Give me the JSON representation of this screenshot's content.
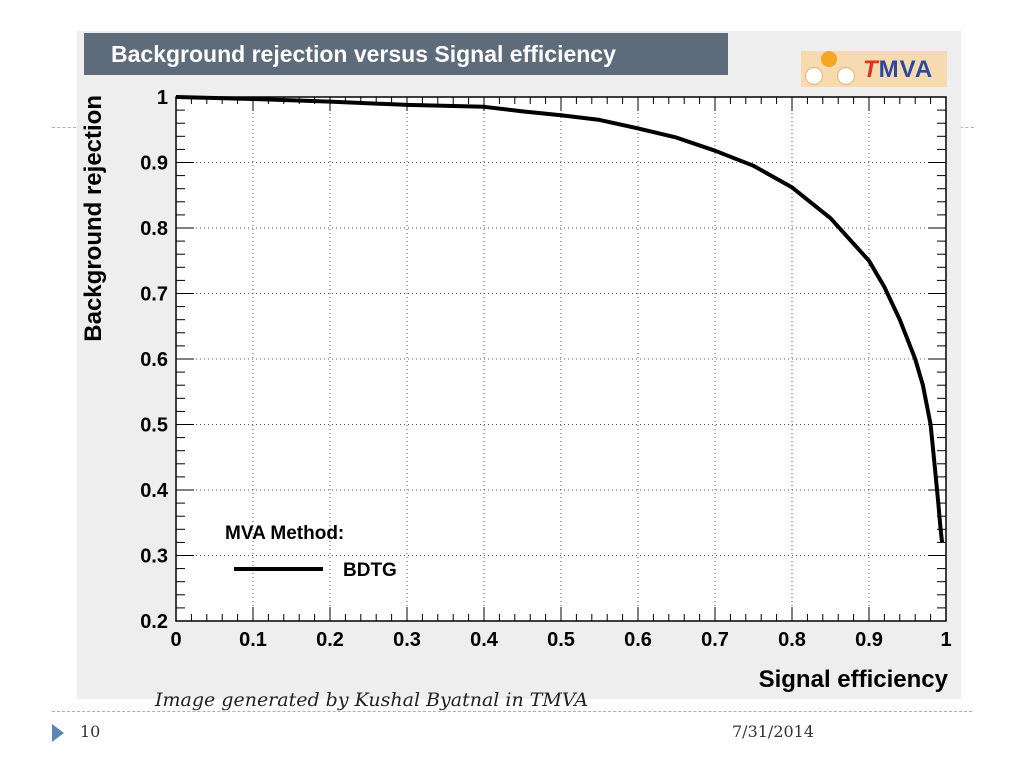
{
  "slide": {
    "caption": "Image generated by Kushal Byatnal in TMVA",
    "number": "10",
    "date": "7/31/2014"
  },
  "logo": {
    "t": "T",
    "rest": "MVA"
  },
  "chart_data": {
    "type": "line",
    "title": "Background rejection versus Signal efficiency",
    "xlabel": "Signal efficiency",
    "ylabel": "Background rejection",
    "xlim": [
      0,
      1
    ],
    "ylim": [
      0.2,
      1
    ],
    "xticks": [
      "0",
      "0.1",
      "0.2",
      "0.3",
      "0.4",
      "0.5",
      "0.6",
      "0.7",
      "0.8",
      "0.9",
      "1"
    ],
    "yticks": [
      "0.2",
      "0.3",
      "0.4",
      "0.5",
      "0.6",
      "0.7",
      "0.8",
      "0.9",
      "1"
    ],
    "grid": true,
    "legend": {
      "header": "MVA Method:",
      "placement": "bottom-left"
    },
    "series": [
      {
        "name": "BDTG",
        "color": "#000000",
        "x": [
          0.0,
          0.1,
          0.2,
          0.3,
          0.4,
          0.45,
          0.5,
          0.55,
          0.6,
          0.65,
          0.7,
          0.75,
          0.8,
          0.85,
          0.9,
          0.92,
          0.94,
          0.96,
          0.97,
          0.98,
          0.985,
          0.99,
          0.993,
          0.995
        ],
        "y": [
          1.0,
          0.997,
          0.993,
          0.988,
          0.985,
          0.978,
          0.972,
          0.965,
          0.952,
          0.938,
          0.918,
          0.895,
          0.862,
          0.815,
          0.75,
          0.71,
          0.66,
          0.6,
          0.56,
          0.5,
          0.44,
          0.38,
          0.34,
          0.32
        ]
      }
    ]
  }
}
